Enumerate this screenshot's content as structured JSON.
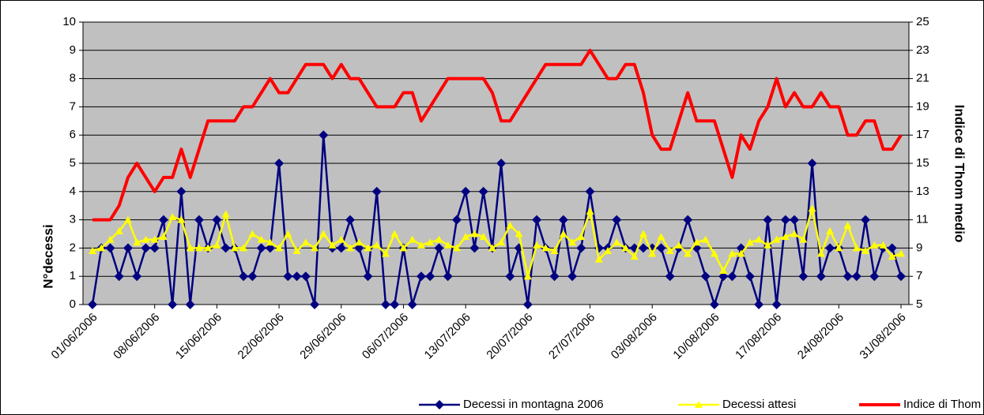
{
  "chart_data": {
    "type": "line",
    "categories": [
      "01/06/2006",
      null,
      null,
      null,
      null,
      null,
      null,
      "08/06/2006",
      null,
      null,
      null,
      null,
      null,
      null,
      "15/06/2006",
      null,
      null,
      null,
      null,
      null,
      null,
      "22/06/2006",
      null,
      null,
      null,
      null,
      null,
      null,
      "29/06/2006",
      null,
      null,
      null,
      null,
      null,
      null,
      "06/07/2006",
      null,
      null,
      null,
      null,
      null,
      null,
      "13/07/2006",
      null,
      null,
      null,
      null,
      null,
      null,
      "20/07/2006",
      null,
      null,
      null,
      null,
      null,
      null,
      "27/07/2006",
      null,
      null,
      null,
      null,
      null,
      null,
      "03/08/2006",
      null,
      null,
      null,
      null,
      null,
      null,
      "10/08/2006",
      null,
      null,
      null,
      null,
      null,
      null,
      "17/08/2006",
      null,
      null,
      null,
      null,
      null,
      null,
      "24/08/2006",
      null,
      null,
      null,
      null,
      null,
      null,
      "31/08/2006"
    ],
    "ylabel": "N°decessi",
    "y2label": "Indice di Thom medio",
    "ylim": [
      0,
      10
    ],
    "yticks": [
      0,
      1,
      2,
      3,
      4,
      5,
      6,
      7,
      8,
      9,
      10
    ],
    "y2lim": [
      5,
      25
    ],
    "y2ticks": [
      5,
      7,
      9,
      11,
      13,
      15,
      17,
      19,
      21,
      23,
      25
    ],
    "grid": true,
    "series": [
      {
        "name": "Decessi in montagna 2006",
        "color": "#000080",
        "marker": "diamond",
        "values": [
          0,
          2,
          2,
          1,
          2,
          1,
          2,
          2,
          3,
          0,
          4,
          0,
          3,
          2,
          3,
          2,
          2,
          1,
          1,
          2,
          2,
          5,
          1,
          1,
          1,
          0,
          6,
          2,
          2,
          3,
          2,
          1,
          4,
          0,
          0,
          2,
          0,
          1,
          1,
          2,
          1,
          3,
          4,
          2,
          4,
          2,
          5,
          1,
          2,
          0,
          3,
          2,
          1,
          3,
          1,
          2,
          4,
          2,
          2,
          3,
          2,
          2,
          2,
          2,
          2,
          1,
          2,
          3,
          2,
          1,
          0,
          1,
          1,
          2,
          1,
          0,
          3,
          0,
          3,
          3,
          1,
          5,
          1,
          2,
          2,
          1,
          1,
          3,
          1,
          2,
          2,
          1
        ]
      },
      {
        "name": "Decessi attesi",
        "color": "#ffff00",
        "marker": "triangle",
        "values": [
          1.9,
          2.0,
          2.3,
          2.6,
          3.0,
          2.2,
          2.3,
          2.3,
          2.4,
          3.1,
          3.0,
          2.0,
          2.0,
          2.0,
          2.1,
          3.2,
          2.0,
          2.0,
          2.5,
          2.3,
          2.2,
          2.0,
          2.5,
          1.9,
          2.2,
          2.0,
          2.5,
          2.1,
          2.3,
          2.0,
          2.2,
          2.0,
          2.1,
          1.8,
          2.5,
          2.0,
          2.3,
          2.1,
          2.2,
          2.3,
          2.1,
          2.0,
          2.4,
          2.5,
          2.4,
          2.0,
          2.2,
          2.8,
          2.5,
          1.0,
          2.1,
          2.0,
          1.9,
          2.5,
          2.2,
          2.4,
          3.3,
          1.6,
          1.9,
          2.2,
          2.0,
          1.7,
          2.5,
          1.8,
          2.4,
          1.9,
          2.1,
          1.8,
          2.2,
          2.3,
          1.8,
          1.2,
          1.8,
          1.8,
          2.2,
          2.3,
          2.1,
          2.3,
          2.4,
          2.5,
          2.3,
          3.4,
          1.8,
          2.6,
          2.0,
          2.8,
          2.0,
          1.9,
          2.1,
          2.1,
          1.7,
          1.8
        ]
      },
      {
        "name": "Indice di Thom",
        "color": "#ff0000",
        "axis": "y2",
        "values": [
          11,
          11,
          11,
          12,
          14,
          15,
          14,
          13,
          14,
          14,
          16,
          14,
          16,
          18,
          18,
          18,
          18,
          19,
          19,
          20,
          21,
          20,
          20,
          21,
          22,
          22,
          22,
          21,
          22,
          21,
          21,
          20,
          19,
          19,
          19,
          20,
          20,
          18,
          19,
          20,
          21,
          21,
          21,
          21,
          21,
          20,
          18,
          18,
          19,
          20,
          21,
          22,
          22,
          22,
          22,
          22,
          23,
          22,
          21,
          21,
          22,
          22,
          20,
          17,
          16,
          16,
          18,
          20,
          18,
          18,
          18,
          16,
          14,
          17,
          16,
          18,
          19,
          21,
          19,
          20,
          19,
          19,
          20,
          19,
          19,
          17,
          17,
          18,
          18,
          16,
          16,
          17
        ]
      }
    ]
  }
}
